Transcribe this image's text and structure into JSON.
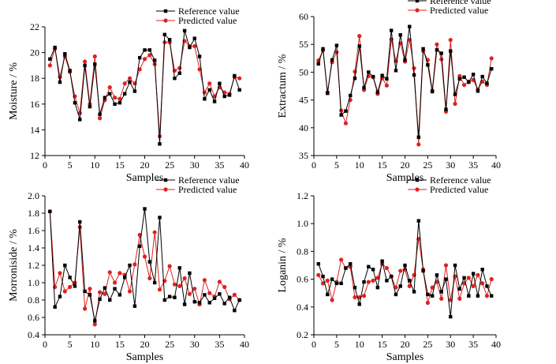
{
  "chart_data": [
    {
      "type": "line",
      "xlabel": "Samples",
      "ylabel": "Moisture / %",
      "xlim": [
        0,
        40
      ],
      "ylim": [
        12,
        22
      ],
      "xticks": [
        0,
        5,
        10,
        15,
        20,
        25,
        30,
        35,
        40
      ],
      "yticks": [
        12,
        14,
        16,
        18,
        20,
        22
      ],
      "legend_position": "top-right",
      "series": [
        {
          "name": "Reference value",
          "color": "#000000",
          "marker": "square",
          "x": [
            1,
            2,
            3,
            4,
            5,
            6,
            7,
            8,
            9,
            10,
            11,
            12,
            13,
            14,
            15,
            16,
            17,
            18,
            19,
            20,
            21,
            22,
            23,
            24,
            25,
            26,
            27,
            28,
            29,
            30,
            31,
            32,
            33,
            34,
            35,
            36,
            37,
            38,
            39
          ],
          "values": [
            19.5,
            20.4,
            17.7,
            19.9,
            18.6,
            16.1,
            14.8,
            19.0,
            15.8,
            19.1,
            15.2,
            16.5,
            16.8,
            16.0,
            16.1,
            16.8,
            17.7,
            17.0,
            19.6,
            20.2,
            20.2,
            19.4,
            12.9,
            21.4,
            21.0,
            18.0,
            18.4,
            21.7,
            20.4,
            21.1,
            19.7,
            16.4,
            17.1,
            16.2,
            17.6,
            16.6,
            16.7,
            18.2,
            17.1
          ]
        },
        {
          "name": "Predicted value",
          "color": "#dd2222",
          "marker": "circle",
          "x": [
            1,
            2,
            3,
            4,
            5,
            6,
            7,
            8,
            9,
            10,
            11,
            12,
            13,
            14,
            15,
            16,
            17,
            18,
            19,
            20,
            21,
            22,
            23,
            24,
            25,
            26,
            27,
            28,
            29,
            30,
            31,
            32,
            33,
            34,
            35,
            36,
            37,
            38,
            39
          ],
          "values": [
            19.0,
            20.3,
            18.1,
            19.7,
            18.5,
            16.6,
            15.3,
            19.3,
            16.0,
            19.7,
            14.9,
            16.3,
            17.3,
            16.5,
            16.4,
            17.6,
            18.0,
            17.6,
            18.7,
            19.5,
            19.8,
            19.1,
            13.5,
            20.8,
            20.8,
            18.6,
            18.8,
            20.9,
            20.5,
            20.5,
            18.7,
            16.9,
            17.6,
            16.6,
            17.3,
            16.9,
            16.8,
            18.1,
            18.0
          ]
        }
      ]
    },
    {
      "type": "line",
      "xlabel": "Samples",
      "ylabel": "Extractum / %",
      "xlim": [
        0,
        40
      ],
      "ylim": [
        35,
        60
      ],
      "xticks": [
        0,
        5,
        10,
        15,
        20,
        25,
        30,
        35,
        40
      ],
      "yticks": [
        35,
        40,
        45,
        50,
        55,
        60
      ],
      "legend_position": "top-right",
      "series": [
        {
          "name": "Reference value",
          "color": "#000000",
          "marker": "square",
          "x": [
            1,
            2,
            3,
            4,
            5,
            6,
            7,
            8,
            9,
            10,
            11,
            12,
            13,
            14,
            15,
            16,
            17,
            18,
            19,
            20,
            21,
            22,
            23,
            24,
            25,
            26,
            27,
            28,
            29,
            30,
            31,
            32,
            33,
            34,
            35,
            36,
            37,
            38,
            39
          ],
          "values": [
            51.5,
            54.2,
            46.2,
            52.2,
            54.8,
            42.3,
            43.0,
            45.8,
            48.9,
            54.7,
            47.2,
            50.0,
            49.2,
            46.4,
            49.4,
            48.8,
            57.5,
            50.3,
            56.7,
            52.2,
            58.2,
            49.5,
            38.3,
            54.2,
            51.3,
            46.5,
            54.0,
            53.4,
            43.3,
            53.8,
            46.0,
            48.8,
            49.1,
            48.2,
            49.6,
            46.6,
            49.2,
            48.0,
            50.6
          ]
        },
        {
          "name": "Predicted value",
          "color": "#dd2222",
          "marker": "circle",
          "x": [
            1,
            2,
            3,
            4,
            5,
            6,
            7,
            8,
            9,
            10,
            11,
            12,
            13,
            14,
            15,
            16,
            17,
            18,
            19,
            20,
            21,
            22,
            23,
            24,
            25,
            26,
            27,
            28,
            29,
            30,
            31,
            32,
            33,
            34,
            35,
            36,
            37,
            38,
            39
          ],
          "values": [
            52.1,
            53.9,
            46.4,
            51.8,
            53.6,
            43.1,
            40.8,
            45.0,
            50.1,
            56.5,
            46.8,
            49.3,
            49.1,
            46.1,
            48.9,
            47.6,
            55.9,
            52.0,
            55.2,
            51.9,
            55.8,
            50.7,
            37.0,
            53.8,
            52.2,
            46.7,
            55.0,
            52.3,
            42.9,
            55.8,
            44.3,
            49.3,
            47.7,
            48.3,
            48.6,
            46.9,
            48.3,
            47.7,
            52.5
          ]
        }
      ]
    },
    {
      "type": "line",
      "xlabel": "Samples",
      "ylabel": "Morroniside / %",
      "xlim": [
        0,
        40
      ],
      "ylim": [
        0.4,
        2.0
      ],
      "xticks": [
        0,
        5,
        10,
        15,
        20,
        25,
        30,
        35,
        40
      ],
      "yticks": [
        "0.4",
        "0.6",
        "0.8",
        "1.0",
        "1.2",
        "1.4",
        "1.6",
        "1.8",
        "2.0"
      ],
      "legend_position": "top-right",
      "series": [
        {
          "name": "Reference value",
          "color": "#000000",
          "marker": "square",
          "x": [
            1,
            2,
            3,
            4,
            5,
            6,
            7,
            8,
            9,
            10,
            11,
            12,
            13,
            14,
            15,
            16,
            17,
            18,
            19,
            20,
            21,
            22,
            23,
            24,
            25,
            26,
            27,
            28,
            29,
            30,
            31,
            32,
            33,
            34,
            35,
            36,
            37,
            38,
            39
          ],
          "values": [
            1.82,
            0.72,
            0.84,
            1.2,
            1.06,
            0.96,
            1.7,
            0.9,
            0.86,
            0.56,
            0.81,
            0.94,
            0.8,
            0.93,
            0.86,
            1.06,
            1.2,
            0.73,
            1.42,
            1.85,
            1.24,
            1.0,
            1.75,
            0.8,
            0.84,
            0.83,
            1.17,
            0.75,
            1.11,
            0.78,
            0.77,
            0.86,
            0.77,
            0.82,
            0.87,
            0.76,
            0.83,
            0.68,
            0.8
          ]
        },
        {
          "name": "Predicted value",
          "color": "#dd2222",
          "marker": "circle",
          "x": [
            1,
            2,
            3,
            4,
            5,
            6,
            7,
            8,
            9,
            10,
            11,
            12,
            13,
            14,
            15,
            16,
            17,
            18,
            19,
            20,
            21,
            22,
            23,
            24,
            25,
            26,
            27,
            28,
            29,
            30,
            31,
            32,
            33,
            34,
            35,
            36,
            37,
            38,
            39
          ],
          "values": [
            1.82,
            0.95,
            1.11,
            0.9,
            0.95,
            1.0,
            1.64,
            0.7,
            0.93,
            0.52,
            0.89,
            0.87,
            1.12,
            1.0,
            1.11,
            1.09,
            0.9,
            1.21,
            1.55,
            1.3,
            1.05,
            1.58,
            0.92,
            1.02,
            1.19,
            0.98,
            0.96,
            1.05,
            0.87,
            0.93,
            0.75,
            1.03,
            0.88,
            0.84,
            1.01,
            0.95,
            0.81,
            0.86,
            0.8
          ]
        }
      ]
    },
    {
      "type": "line",
      "xlabel": "Samples",
      "ylabel": "Loganin / %",
      "xlim": [
        0,
        40
      ],
      "ylim": [
        0.2,
        1.2
      ],
      "xticks": [
        0,
        5,
        10,
        15,
        20,
        25,
        30,
        35,
        40
      ],
      "yticks": [
        "0.2",
        "0.4",
        "0.6",
        "0.8",
        "1.0",
        "1.2"
      ],
      "legend_position": "top-right",
      "series": [
        {
          "name": "Reference value",
          "color": "#000000",
          "marker": "square",
          "x": [
            1,
            2,
            3,
            4,
            5,
            6,
            7,
            8,
            9,
            10,
            11,
            12,
            13,
            14,
            15,
            16,
            17,
            18,
            19,
            20,
            21,
            22,
            23,
            24,
            25,
            26,
            27,
            28,
            29,
            30,
            31,
            32,
            33,
            34,
            35,
            36,
            37,
            38,
            39
          ],
          "values": [
            0.71,
            0.62,
            0.49,
            0.6,
            0.57,
            0.57,
            0.68,
            0.71,
            0.54,
            0.42,
            0.58,
            0.69,
            0.67,
            0.54,
            0.73,
            0.59,
            0.62,
            0.49,
            0.55,
            0.7,
            0.59,
            0.51,
            1.02,
            0.66,
            0.49,
            0.48,
            0.63,
            0.51,
            0.6,
            0.33,
            0.7,
            0.53,
            0.61,
            0.48,
            0.64,
            0.48,
            0.67,
            0.55,
            0.48
          ]
        },
        {
          "name": "Predicted value",
          "color": "#dd2222",
          "marker": "circle",
          "x": [
            1,
            2,
            3,
            4,
            5,
            6,
            7,
            8,
            9,
            10,
            11,
            12,
            13,
            14,
            15,
            16,
            17,
            18,
            19,
            20,
            21,
            22,
            23,
            24,
            25,
            26,
            27,
            28,
            29,
            30,
            31,
            32,
            33,
            34,
            35,
            36,
            37,
            38,
            39
          ],
          "values": [
            0.63,
            0.57,
            0.59,
            0.45,
            0.58,
            0.74,
            0.68,
            0.69,
            0.47,
            0.47,
            0.48,
            0.58,
            0.59,
            0.61,
            0.71,
            0.68,
            0.62,
            0.54,
            0.66,
            0.67,
            0.55,
            0.63,
            0.89,
            0.67,
            0.43,
            0.54,
            0.58,
            0.46,
            0.7,
            0.45,
            0.62,
            0.46,
            0.57,
            0.61,
            0.55,
            0.63,
            0.57,
            0.48,
            0.6
          ]
        }
      ]
    }
  ]
}
